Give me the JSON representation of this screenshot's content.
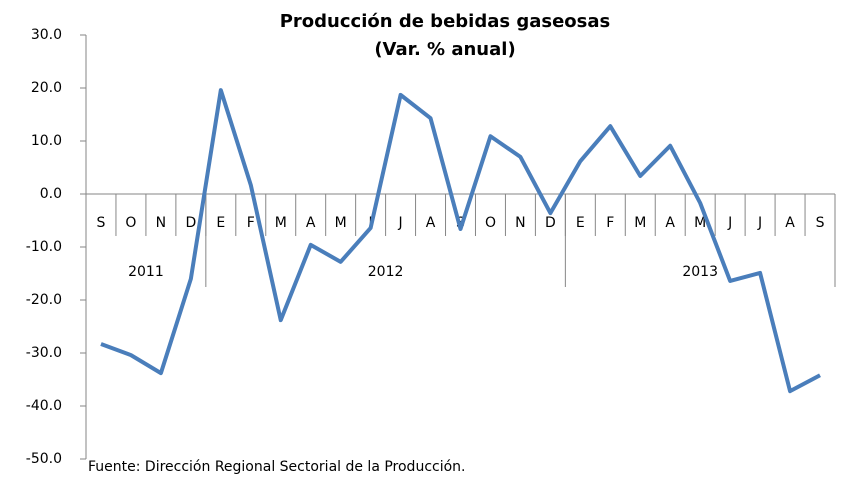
{
  "chart_data": {
    "type": "line",
    "title": "Producción de bebidas gaseosas",
    "subtitle": "(Var. % anual)",
    "note": "Fuente: Dirección Regional Sectorial de la Producción.",
    "categories": [
      "S",
      "O",
      "N",
      "D",
      "E",
      "F",
      "M",
      "A",
      "M",
      "J",
      "J",
      "A",
      "S",
      "O",
      "N",
      "D",
      "E",
      "F",
      "M",
      "A",
      "M",
      "J",
      "J",
      "A",
      "S"
    ],
    "groups": [
      {
        "label": "2011",
        "span": 4
      },
      {
        "label": "2012",
        "span": 12
      },
      {
        "label": "2013",
        "span": 9
      }
    ],
    "series": [
      {
        "name": "Var. % anual",
        "color": "#4a7ebb",
        "values": [
          -28.3,
          -30.4,
          -33.8,
          -16.0,
          19.6,
          1.7,
          -23.8,
          -9.6,
          -12.8,
          -6.4,
          18.7,
          14.3,
          -6.6,
          10.9,
          7.0,
          -3.6,
          6.2,
          12.8,
          3.4,
          9.1,
          -1.7,
          -16.4,
          -14.9,
          -37.2,
          -34.2
        ]
      }
    ],
    "ylim": [
      -50,
      30
    ],
    "yticks": [
      {
        "value": -50,
        "label": "-50.0"
      },
      {
        "value": -40,
        "label": "-40.0"
      },
      {
        "value": -30,
        "label": "-30.0"
      },
      {
        "value": -20,
        "label": "-20.0"
      },
      {
        "value": -10,
        "label": "-10.0"
      },
      {
        "value": 0,
        "label": "0.0"
      },
      {
        "value": 10,
        "label": "10.0"
      },
      {
        "value": 20,
        "label": "20.0"
      },
      {
        "value": 30,
        "label": "30.0"
      }
    ],
    "grid": false
  }
}
